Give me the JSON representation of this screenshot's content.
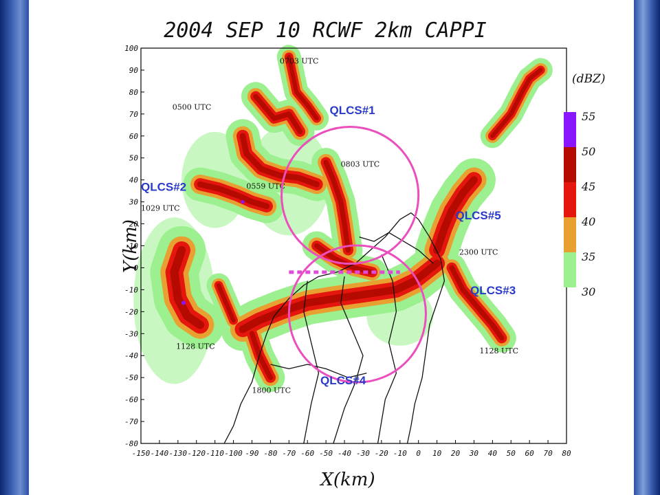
{
  "chart_data": {
    "type": "heatmap",
    "title": "2004 SEP 10 RCWF 2km CAPPI",
    "xlabel": "X(km)",
    "ylabel": "Y(km)",
    "xlim": [
      -150,
      80
    ],
    "ylim": [
      -80,
      100
    ],
    "x_ticks": [
      -150,
      -140,
      -130,
      -120,
      -110,
      -100,
      -90,
      -80,
      -70,
      -60,
      -50,
      -40,
      -30,
      -20,
      -10,
      0,
      10,
      20,
      30,
      40,
      50,
      60,
      70,
      80
    ],
    "y_ticks": [
      100,
      90,
      80,
      70,
      60,
      50,
      40,
      30,
      20,
      10,
      0,
      -10,
      -20,
      -30,
      -40,
      -50,
      -60,
      -70,
      -80
    ],
    "colorbar": {
      "unit": "(dBZ)",
      "levels": [
        55,
        50,
        45,
        40,
        35,
        30
      ],
      "colors": [
        "#8a16ff",
        "#b40a00",
        "#e5160e",
        "#e8a030",
        "#9cf090"
      ]
    },
    "time_labels": [
      {
        "text": "0703 UTC",
        "x": -75,
        "y": 93
      },
      {
        "text": "0500 UTC",
        "x": -133,
        "y": 72
      },
      {
        "text": "0803 UTC",
        "x": -42,
        "y": 46
      },
      {
        "text": "0559 UTC",
        "x": -93,
        "y": 36
      },
      {
        "text": "1029 UTC",
        "x": -150,
        "y": 26
      },
      {
        "text": "2300 UTC",
        "x": 22,
        "y": 6
      },
      {
        "text": "1128 UTC",
        "x": -131,
        "y": -37
      },
      {
        "text": "1128 UTC",
        "x": 33,
        "y": -39
      },
      {
        "text": "1800 UTC",
        "x": -90,
        "y": -57
      }
    ],
    "annotations": [
      {
        "label": "QLCS#1",
        "x": -48,
        "y": 70
      },
      {
        "label": "QLCS#2",
        "x": -150,
        "y": 35
      },
      {
        "label": "QLCS#5",
        "x": 20,
        "y": 22
      },
      {
        "label": "QLCS#3",
        "x": 28,
        "y": -12
      },
      {
        "label": "QLCS#4",
        "x": -53,
        "y": -53
      }
    ],
    "circles": [
      {
        "center_x": -37,
        "center_y": 33,
        "radius_km": 37
      },
      {
        "center_x": -33,
        "center_y": -21,
        "radius_km": 37
      }
    ],
    "dashed_line": {
      "x": [
        -70,
        -10
      ],
      "y": [
        -2,
        -2
      ]
    }
  },
  "colors": {
    "circle": "#ea4fbd",
    "dashed_line": "#e04ad8",
    "annotation_text": "#2a3ac8",
    "slide_border": "#1e3c8c"
  }
}
